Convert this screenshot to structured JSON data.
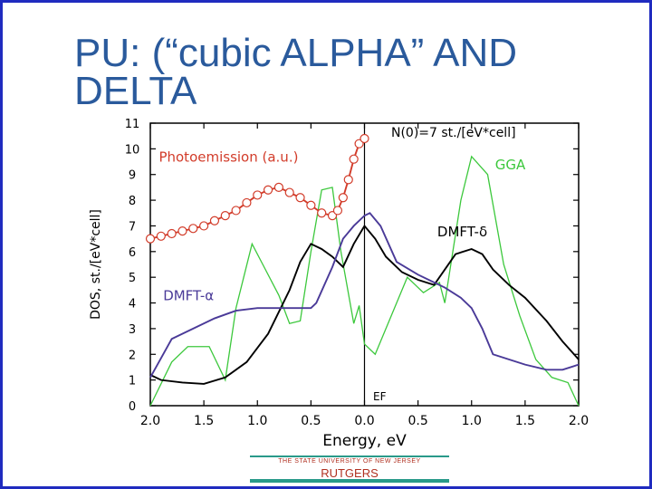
{
  "slide": {
    "title_line1": "PU: (“cubic ALPHA” AND",
    "title_line2": "DELTA",
    "footer_top": "THE STATE UNIVERSITY OF NEW JERSEY",
    "footer_bottom": "RUTGERS",
    "border_color": "#1f2bbf",
    "title_color": "#2a5a9c"
  },
  "chart_data": {
    "type": "line",
    "xlabel": "Energy, eV",
    "ylabel": "DOS, st./[eV*cell]",
    "xlim": [
      -2.0,
      2.0
    ],
    "ylim": [
      0,
      11
    ],
    "x_ticks": [
      -2.0,
      -1.5,
      -1.0,
      -0.5,
      0.0,
      0.5,
      1.0,
      1.5,
      2.0
    ],
    "x_tick_labels": [
      "2.0",
      "1.5",
      "1.0",
      "0.5",
      "0.0",
      "0.5",
      "1.0",
      "1.5",
      "2.0"
    ],
    "y_ticks": [
      0,
      1,
      2,
      3,
      4,
      5,
      6,
      7,
      8,
      9,
      10,
      11
    ],
    "y_tick_labels": [
      "0",
      "1",
      "2",
      "3",
      "4",
      "5",
      "6",
      "7",
      "8",
      "9",
      "10",
      "11"
    ],
    "annotations": {
      "norm": "N(0)=7 st./[eV*cell]",
      "ef": "EF"
    },
    "series": [
      {
        "name": "GGA",
        "color": "#3cc83c",
        "x": [
          -2.0,
          -1.8,
          -1.65,
          -1.45,
          -1.3,
          -1.2,
          -1.05,
          -0.95,
          -0.8,
          -0.7,
          -0.6,
          -0.5,
          -0.4,
          -0.3,
          -0.22,
          -0.1,
          -0.05,
          0.0,
          0.1,
          0.25,
          0.4,
          0.55,
          0.7,
          0.75,
          0.9,
          1.0,
          1.15,
          1.3,
          1.45,
          1.6,
          1.75,
          1.9,
          2.0
        ],
        "y": [
          0,
          1.7,
          2.3,
          2.3,
          1.0,
          3.8,
          6.3,
          5.5,
          4.3,
          3.2,
          3.3,
          6.0,
          8.4,
          8.5,
          6.0,
          3.2,
          3.9,
          2.4,
          2.0,
          3.5,
          5.0,
          4.4,
          4.8,
          4.0,
          8.0,
          9.7,
          9.0,
          5.5,
          3.5,
          1.8,
          1.1,
          0.9,
          0
        ],
        "label_x": 1.22,
        "label_y": 9.2
      },
      {
        "name": "DMFT-δ",
        "color": "#000000",
        "x": [
          -2.0,
          -1.9,
          -1.7,
          -1.5,
          -1.3,
          -1.1,
          -0.9,
          -0.7,
          -0.6,
          -0.5,
          -0.4,
          -0.3,
          -0.2,
          -0.1,
          0.0,
          0.1,
          0.2,
          0.35,
          0.5,
          0.65,
          0.75,
          0.85,
          1.0,
          1.1,
          1.2,
          1.35,
          1.5,
          1.7,
          1.85,
          2.0
        ],
        "y": [
          1.2,
          1.0,
          0.9,
          0.85,
          1.1,
          1.7,
          2.8,
          4.5,
          5.6,
          6.3,
          6.1,
          5.8,
          5.4,
          6.3,
          7.0,
          6.5,
          5.8,
          5.2,
          4.9,
          4.7,
          5.3,
          5.9,
          6.1,
          5.9,
          5.3,
          4.7,
          4.2,
          3.3,
          2.5,
          1.8
        ],
        "label_x": 0.68,
        "label_y": 6.6
      },
      {
        "name": "DMFT-α",
        "color": "#4a3a98",
        "x": [
          -2.0,
          -1.8,
          -1.6,
          -1.4,
          -1.2,
          -1.0,
          -0.8,
          -0.5,
          -0.45,
          -0.3,
          -0.2,
          -0.1,
          0.0,
          0.05,
          0.15,
          0.3,
          0.5,
          0.65,
          0.75,
          0.9,
          1.0,
          1.1,
          1.2,
          1.5,
          1.7,
          1.85,
          2.0
        ],
        "y": [
          1.1,
          2.6,
          3.0,
          3.4,
          3.7,
          3.8,
          3.8,
          3.8,
          4.0,
          5.4,
          6.5,
          7.0,
          7.4,
          7.5,
          7.0,
          5.6,
          5.1,
          4.8,
          4.6,
          4.2,
          3.8,
          3.0,
          2.0,
          1.6,
          1.4,
          1.4,
          1.6
        ],
        "label_x": -1.88,
        "label_y": 4.1
      },
      {
        "name": "Photoemission (a.u.)",
        "color": "#d23c2a",
        "marker": "circle",
        "x": [
          -2.0,
          -1.9,
          -1.8,
          -1.7,
          -1.6,
          -1.5,
          -1.4,
          -1.3,
          -1.2,
          -1.1,
          -1.0,
          -0.9,
          -0.8,
          -0.7,
          -0.6,
          -0.5,
          -0.4,
          -0.3,
          -0.25,
          -0.2,
          -0.15,
          -0.1,
          -0.05,
          0.0
        ],
        "y": [
          6.5,
          6.6,
          6.7,
          6.8,
          6.9,
          7.0,
          7.2,
          7.4,
          7.6,
          7.9,
          8.2,
          8.4,
          8.5,
          8.3,
          8.1,
          7.8,
          7.5,
          7.4,
          7.6,
          8.1,
          8.8,
          9.6,
          10.2,
          10.4
        ],
        "label_x": -1.92,
        "label_y": 9.5
      }
    ]
  }
}
